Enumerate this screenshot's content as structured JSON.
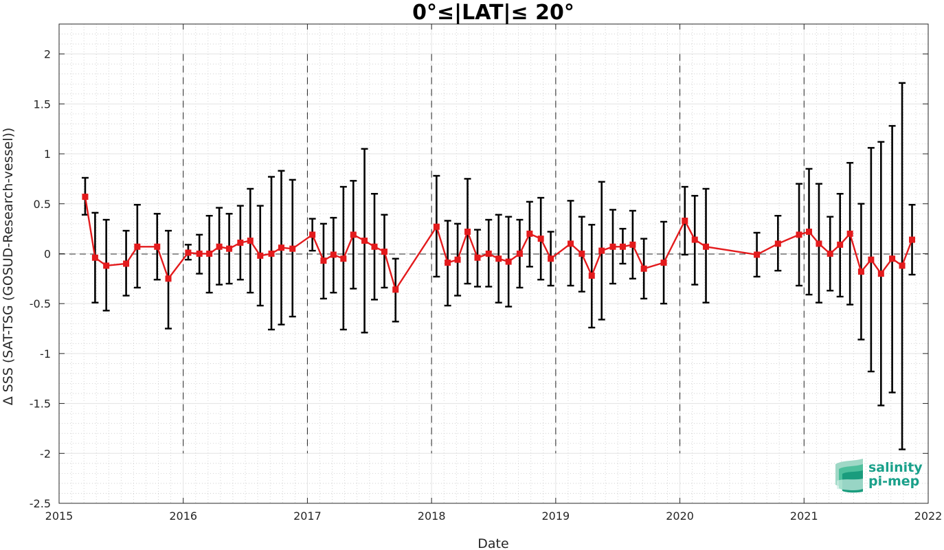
{
  "chart_data": {
    "type": "line",
    "title": "0°≤|LAT|≤ 20°",
    "xlabel": "Date",
    "ylabel": "Δ SSS (SAT-TSG (GOSUD-Research-vessel))",
    "xlim": [
      2015,
      2022
    ],
    "ylim": [
      -2.5,
      2.3
    ],
    "x_ticks": [
      "2015",
      "2016",
      "2017",
      "2018",
      "2019",
      "2020",
      "2021",
      "2022"
    ],
    "y_ticks": [
      "2",
      "1.5",
      "1",
      "0.5",
      "0",
      "-0.5",
      "-1",
      "-1.5",
      "-2",
      "-2.5"
    ],
    "grid": true,
    "year_boundaries": [
      2016,
      2017,
      2018,
      2019,
      2020,
      2021
    ],
    "series": [
      {
        "color": "#e31a1c",
        "errorbar_color": "#000000",
        "points": [
          {
            "x": 2015.21,
            "y": 0.57,
            "lo": 0.39,
            "hi": 0.76
          },
          {
            "x": 2015.29,
            "y": -0.04,
            "lo": -0.49,
            "hi": 0.41
          },
          {
            "x": 2015.38,
            "y": -0.12,
            "lo": -0.57,
            "hi": 0.34
          },
          {
            "x": 2015.54,
            "y": -0.1,
            "lo": -0.42,
            "hi": 0.23
          },
          {
            "x": 2015.63,
            "y": 0.07,
            "lo": -0.34,
            "hi": 0.49
          },
          {
            "x": 2015.79,
            "y": 0.07,
            "lo": -0.26,
            "hi": 0.4
          },
          {
            "x": 2015.88,
            "y": -0.25,
            "lo": -0.75,
            "hi": 0.23
          },
          {
            "x": 2016.04,
            "y": 0.01,
            "lo": -0.06,
            "hi": 0.09
          },
          {
            "x": 2016.13,
            "y": 0.0,
            "lo": -0.2,
            "hi": 0.19
          },
          {
            "x": 2016.21,
            "y": 0.0,
            "lo": -0.39,
            "hi": 0.38
          },
          {
            "x": 2016.29,
            "y": 0.07,
            "lo": -0.31,
            "hi": 0.46
          },
          {
            "x": 2016.37,
            "y": 0.05,
            "lo": -0.3,
            "hi": 0.4
          },
          {
            "x": 2016.46,
            "y": 0.11,
            "lo": -0.26,
            "hi": 0.48
          },
          {
            "x": 2016.54,
            "y": 0.13,
            "lo": -0.39,
            "hi": 0.65
          },
          {
            "x": 2016.62,
            "y": -0.02,
            "lo": -0.52,
            "hi": 0.48
          },
          {
            "x": 2016.71,
            "y": 0.0,
            "lo": -0.76,
            "hi": 0.77
          },
          {
            "x": 2016.79,
            "y": 0.06,
            "lo": -0.71,
            "hi": 0.83
          },
          {
            "x": 2016.88,
            "y": 0.05,
            "lo": -0.63,
            "hi": 0.74
          },
          {
            "x": 2017.04,
            "y": 0.19,
            "lo": 0.03,
            "hi": 0.35
          },
          {
            "x": 2017.13,
            "y": -0.07,
            "lo": -0.45,
            "hi": 0.3
          },
          {
            "x": 2017.21,
            "y": -0.01,
            "lo": -0.39,
            "hi": 0.36
          },
          {
            "x": 2017.29,
            "y": -0.05,
            "lo": -0.76,
            "hi": 0.67
          },
          {
            "x": 2017.37,
            "y": 0.19,
            "lo": -0.35,
            "hi": 0.73
          },
          {
            "x": 2017.46,
            "y": 0.13,
            "lo": -0.79,
            "hi": 1.05
          },
          {
            "x": 2017.54,
            "y": 0.07,
            "lo": -0.46,
            "hi": 0.6
          },
          {
            "x": 2017.62,
            "y": 0.02,
            "lo": -0.34,
            "hi": 0.39
          },
          {
            "x": 2017.71,
            "y": -0.36,
            "lo": -0.68,
            "hi": -0.05
          },
          {
            "x": 2018.04,
            "y": 0.27,
            "lo": -0.23,
            "hi": 0.78
          },
          {
            "x": 2018.13,
            "y": -0.09,
            "lo": -0.52,
            "hi": 0.33
          },
          {
            "x": 2018.21,
            "y": -0.06,
            "lo": -0.42,
            "hi": 0.3
          },
          {
            "x": 2018.29,
            "y": 0.22,
            "lo": -0.3,
            "hi": 0.75
          },
          {
            "x": 2018.37,
            "y": -0.04,
            "lo": -0.33,
            "hi": 0.24
          },
          {
            "x": 2018.46,
            "y": 0.0,
            "lo": -0.33,
            "hi": 0.34
          },
          {
            "x": 2018.54,
            "y": -0.05,
            "lo": -0.49,
            "hi": 0.39
          },
          {
            "x": 2018.62,
            "y": -0.08,
            "lo": -0.53,
            "hi": 0.37
          },
          {
            "x": 2018.71,
            "y": 0.0,
            "lo": -0.34,
            "hi": 0.34
          },
          {
            "x": 2018.79,
            "y": 0.2,
            "lo": -0.13,
            "hi": 0.52
          },
          {
            "x": 2018.88,
            "y": 0.15,
            "lo": -0.26,
            "hi": 0.56
          },
          {
            "x": 2018.96,
            "y": -0.05,
            "lo": -0.32,
            "hi": 0.22
          },
          {
            "x": 2019.12,
            "y": 0.1,
            "lo": -0.32,
            "hi": 0.53
          },
          {
            "x": 2019.21,
            "y": 0.0,
            "lo": -0.38,
            "hi": 0.37
          },
          {
            "x": 2019.29,
            "y": -0.22,
            "lo": -0.74,
            "hi": 0.29
          },
          {
            "x": 2019.37,
            "y": 0.03,
            "lo": -0.66,
            "hi": 0.72
          },
          {
            "x": 2019.46,
            "y": 0.07,
            "lo": -0.3,
            "hi": 0.44
          },
          {
            "x": 2019.54,
            "y": 0.07,
            "lo": -0.1,
            "hi": 0.25
          },
          {
            "x": 2019.62,
            "y": 0.09,
            "lo": -0.25,
            "hi": 0.43
          },
          {
            "x": 2019.71,
            "y": -0.15,
            "lo": -0.45,
            "hi": 0.15
          },
          {
            "x": 2019.87,
            "y": -0.09,
            "lo": -0.5,
            "hi": 0.32
          },
          {
            "x": 2020.04,
            "y": 0.33,
            "lo": -0.01,
            "hi": 0.67
          },
          {
            "x": 2020.12,
            "y": 0.14,
            "lo": -0.31,
            "hi": 0.58
          },
          {
            "x": 2020.21,
            "y": 0.07,
            "lo": -0.49,
            "hi": 0.65
          },
          {
            "x": 2020.62,
            "y": -0.01,
            "lo": -0.23,
            "hi": 0.21
          },
          {
            "x": 2020.79,
            "y": 0.1,
            "lo": -0.17,
            "hi": 0.38
          },
          {
            "x": 2020.96,
            "y": 0.19,
            "lo": -0.32,
            "hi": 0.7
          },
          {
            "x": 2021.04,
            "y": 0.22,
            "lo": -0.41,
            "hi": 0.85
          },
          {
            "x": 2021.12,
            "y": 0.1,
            "lo": -0.49,
            "hi": 0.7
          },
          {
            "x": 2021.21,
            "y": 0.0,
            "lo": -0.37,
            "hi": 0.37
          },
          {
            "x": 2021.29,
            "y": 0.09,
            "lo": -0.43,
            "hi": 0.6
          },
          {
            "x": 2021.37,
            "y": 0.2,
            "lo": -0.51,
            "hi": 0.91
          },
          {
            "x": 2021.46,
            "y": -0.18,
            "lo": -0.86,
            "hi": 0.5
          },
          {
            "x": 2021.54,
            "y": -0.06,
            "lo": -1.18,
            "hi": 1.06
          },
          {
            "x": 2021.62,
            "y": -0.2,
            "lo": -1.52,
            "hi": 1.12
          },
          {
            "x": 2021.71,
            "y": -0.05,
            "lo": -1.39,
            "hi": 1.28
          },
          {
            "x": 2021.79,
            "y": -0.12,
            "lo": -1.96,
            "hi": 1.71
          },
          {
            "x": 2021.87,
            "y": 0.14,
            "lo": -0.21,
            "hi": 0.49
          }
        ]
      }
    ]
  },
  "logo": {
    "line1": "salinity",
    "line2": "pi-mep",
    "color": "#1aa08a"
  }
}
